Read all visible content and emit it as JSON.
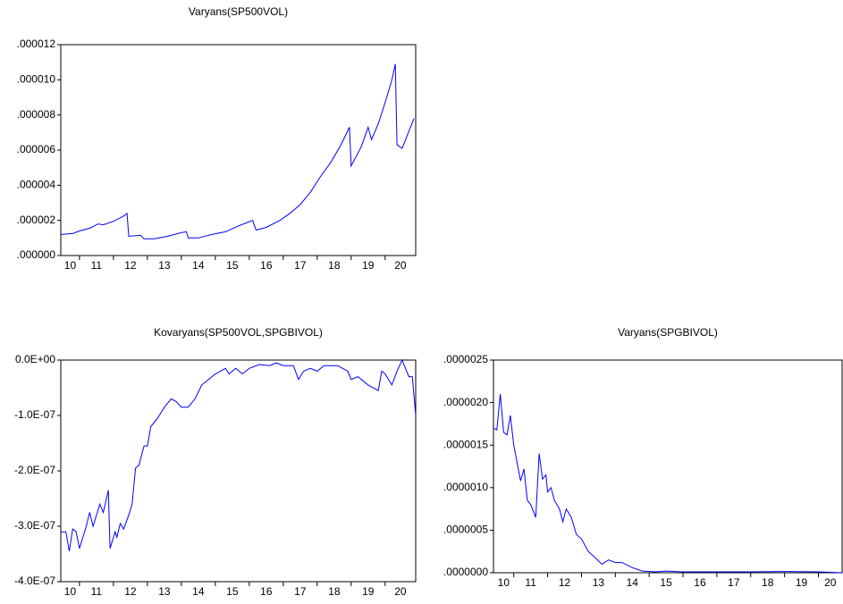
{
  "chart_data": [
    {
      "type": "line",
      "title": "Varyans(SP500VOL)",
      "color": "#0000ff",
      "xlim": [
        2010.45,
        2020.9
      ],
      "ylim": [
        0,
        1.2e-05
      ],
      "xticks": [
        {
          "value": 2010,
          "label": "10"
        },
        {
          "value": 2011,
          "label": "11"
        },
        {
          "value": 2012,
          "label": "12"
        },
        {
          "value": 2013,
          "label": "13"
        },
        {
          "value": 2014,
          "label": "14"
        },
        {
          "value": 2015,
          "label": "15"
        },
        {
          "value": 2016,
          "label": "16"
        },
        {
          "value": 2017,
          "label": "17"
        },
        {
          "value": 2018,
          "label": "18"
        },
        {
          "value": 2019,
          "label": "19"
        },
        {
          "value": 2020,
          "label": "20"
        }
      ],
      "yticks": [
        {
          "value": 0,
          "label": ".000000"
        },
        {
          "value": 2e-06,
          "label": ".000002"
        },
        {
          "value": 4e-06,
          "label": ".000004"
        },
        {
          "value": 6e-06,
          "label": ".000006"
        },
        {
          "value": 8e-06,
          "label": ".000008"
        },
        {
          "value": 1e-05,
          "label": ".000010"
        },
        {
          "value": 1.2e-05,
          "label": ".000012"
        }
      ],
      "x": [
        2010.45,
        2010.8,
        2011.0,
        2011.3,
        2011.55,
        2011.7,
        2012.0,
        2012.3,
        2012.4,
        2012.45,
        2012.8,
        2012.9,
        2013.2,
        2013.6,
        2014.0,
        2014.15,
        2014.2,
        2014.5,
        2014.9,
        2015.3,
        2015.7,
        2016.1,
        2016.2,
        2016.5,
        2016.9,
        2017.2,
        2017.5,
        2017.8,
        2018.1,
        2018.4,
        2018.7,
        2018.95,
        2019.0,
        2019.3,
        2019.5,
        2019.6,
        2019.8,
        2020.0,
        2020.2,
        2020.3,
        2020.35,
        2020.5,
        2020.85
      ],
      "values": [
        1.2e-06,
        1.25e-06,
        1.4e-06,
        1.55e-06,
        1.8e-06,
        1.75e-06,
        1.95e-06,
        2.25e-06,
        2.4e-06,
        1.1e-06,
        1.15e-06,
        9.5e-07,
        9.5e-07,
        1.1e-06,
        1.3e-06,
        1.35e-06,
        1e-06,
        1e-06,
        1.2e-06,
        1.35e-06,
        1.7e-06,
        2e-06,
        1.45e-06,
        1.6e-06,
        2e-06,
        2.4e-06,
        2.9e-06,
        3.6e-06,
        4.5e-06,
        5.3e-06,
        6.3e-06,
        7.3e-06,
        5.1e-06,
        6.2e-06,
        7.3e-06,
        6.6e-06,
        7.5e-06,
        8.7e-06,
        1e-05,
        1.09e-05,
        6.3e-06,
        6.1e-06,
        7.8e-06
      ]
    },
    {
      "type": "line",
      "title": "Kovaryans(SP500VOL,SPGBIVOL)",
      "color": "#0000ff",
      "xlim": [
        2010.45,
        2020.9
      ],
      "ylim": [
        -4e-07,
        0
      ],
      "xticks": [
        {
          "value": 2010,
          "label": "10"
        },
        {
          "value": 2011,
          "label": "11"
        },
        {
          "value": 2012,
          "label": "12"
        },
        {
          "value": 2013,
          "label": "13"
        },
        {
          "value": 2014,
          "label": "14"
        },
        {
          "value": 2015,
          "label": "15"
        },
        {
          "value": 2016,
          "label": "16"
        },
        {
          "value": 2017,
          "label": "17"
        },
        {
          "value": 2018,
          "label": "18"
        },
        {
          "value": 2019,
          "label": "19"
        },
        {
          "value": 2020,
          "label": "20"
        }
      ],
      "yticks": [
        {
          "value": -4e-07,
          "label": "-4.0E-07"
        },
        {
          "value": -3e-07,
          "label": "-3.0E-07"
        },
        {
          "value": -2e-07,
          "label": "-2.0E-07"
        },
        {
          "value": -1e-07,
          "label": "-1.0E-07"
        },
        {
          "value": 0,
          "label": "0.0E+00"
        }
      ],
      "x": [
        2010.45,
        2010.6,
        2010.7,
        2010.8,
        2010.9,
        2011.0,
        2011.2,
        2011.3,
        2011.4,
        2011.6,
        2011.7,
        2011.85,
        2011.9,
        2012.05,
        2012.1,
        2012.2,
        2012.3,
        2012.45,
        2012.55,
        2012.65,
        2012.75,
        2012.9,
        2013.0,
        2013.1,
        2013.3,
        2013.5,
        2013.7,
        2013.85,
        2014.0,
        2014.2,
        2014.4,
        2014.6,
        2014.8,
        2015.0,
        2015.3,
        2015.4,
        2015.6,
        2015.8,
        2016.0,
        2016.3,
        2016.6,
        2016.8,
        2017.0,
        2017.3,
        2017.45,
        2017.6,
        2017.8,
        2018.0,
        2018.2,
        2018.6,
        2018.9,
        2019.0,
        2019.2,
        2019.5,
        2019.8,
        2019.9,
        2020.0,
        2020.2,
        2020.35,
        2020.5,
        2020.7,
        2020.8,
        2020.9
      ],
      "values": [
        -3.1e-07,
        -3.1e-07,
        -3.45e-07,
        -3.05e-07,
        -3.1e-07,
        -3.4e-07,
        -3e-07,
        -2.75e-07,
        -3e-07,
        -2.6e-07,
        -2.75e-07,
        -2.35e-07,
        -3.4e-07,
        -3.1e-07,
        -3.2e-07,
        -2.95e-07,
        -3.05e-07,
        -2.8e-07,
        -2.6e-07,
        -1.95e-07,
        -1.9e-07,
        -1.55e-07,
        -1.55e-07,
        -1.2e-07,
        -1.05e-07,
        -8.5e-08,
        -7e-08,
        -7.5e-08,
        -8.5e-08,
        -8.5e-08,
        -7e-08,
        -4.5e-08,
        -3.5e-08,
        -2.5e-08,
        -1.5e-08,
        -2.5e-08,
        -1.5e-08,
        -2.5e-08,
        -1.5e-08,
        -8e-09,
        -1e-08,
        -5e-09,
        -1e-08,
        -1e-08,
        -3.5e-08,
        -2e-08,
        -1.5e-08,
        -2e-08,
        -1e-08,
        -1e-08,
        -2e-08,
        -3.5e-08,
        -3e-08,
        -4.5e-08,
        -5.5e-08,
        -2e-08,
        -2.5e-08,
        -4.5e-08,
        -2e-08,
        0,
        -3e-08,
        -3e-08,
        -1e-07
      ]
    },
    {
      "type": "line",
      "title": "Varyans(SPGBIVOL)",
      "color": "#0000ff",
      "xlim": [
        2010.4,
        2020.7
      ],
      "ylim": [
        0,
        2.5e-06
      ],
      "xticks": [
        {
          "value": 2010,
          "label": "10"
        },
        {
          "value": 2011,
          "label": "11"
        },
        {
          "value": 2012,
          "label": "12"
        },
        {
          "value": 2013,
          "label": "13"
        },
        {
          "value": 2014,
          "label": "14"
        },
        {
          "value": 2015,
          "label": "15"
        },
        {
          "value": 2016,
          "label": "16"
        },
        {
          "value": 2017,
          "label": "17"
        },
        {
          "value": 2018,
          "label": "18"
        },
        {
          "value": 2019,
          "label": "19"
        },
        {
          "value": 2020,
          "label": "20"
        }
      ],
      "yticks": [
        {
          "value": 0,
          "label": ".0000000"
        },
        {
          "value": 5e-07,
          "label": ".0000005"
        },
        {
          "value": 1e-06,
          "label": ".0000010"
        },
        {
          "value": 1.5e-06,
          "label": ".0000015"
        },
        {
          "value": 2e-06,
          "label": ".0000020"
        },
        {
          "value": 2.5e-06,
          "label": ".0000025"
        }
      ],
      "x": [
        2010.4,
        2010.5,
        2010.6,
        2010.7,
        2010.8,
        2010.9,
        2011.0,
        2011.2,
        2011.3,
        2011.4,
        2011.5,
        2011.65,
        2011.75,
        2011.85,
        2011.95,
        2012.0,
        2012.1,
        2012.2,
        2012.35,
        2012.45,
        2012.55,
        2012.7,
        2012.85,
        2013.0,
        2013.2,
        2013.4,
        2013.6,
        2013.8,
        2014.0,
        2014.2,
        2014.5,
        2014.8,
        2015.2,
        2015.5,
        2016.0,
        2017.0,
        2018.0,
        2019.0,
        2020.0,
        2020.7
      ],
      "values": [
        1.7e-06,
        1.68e-06,
        2.1e-06,
        1.65e-06,
        1.62e-06,
        1.85e-06,
        1.5e-06,
        1.08e-06,
        1.22e-06,
        8.5e-07,
        8e-07,
        6.5e-07,
        1.4e-06,
        1.1e-06,
        1.15e-06,
        9.5e-07,
        1e-06,
        8.5e-07,
        7.5e-07,
        6e-07,
        7.5e-07,
        6.5e-07,
        4.5e-07,
        4e-07,
        2.5e-07,
        1.8e-07,
        1e-07,
        1.5e-07,
        1.2e-07,
        1.2e-07,
        6e-08,
        2e-08,
        1e-08,
        2e-08,
        1e-08,
        1e-08,
        1e-08,
        1.5e-08,
        1e-08,
        0
      ]
    }
  ]
}
